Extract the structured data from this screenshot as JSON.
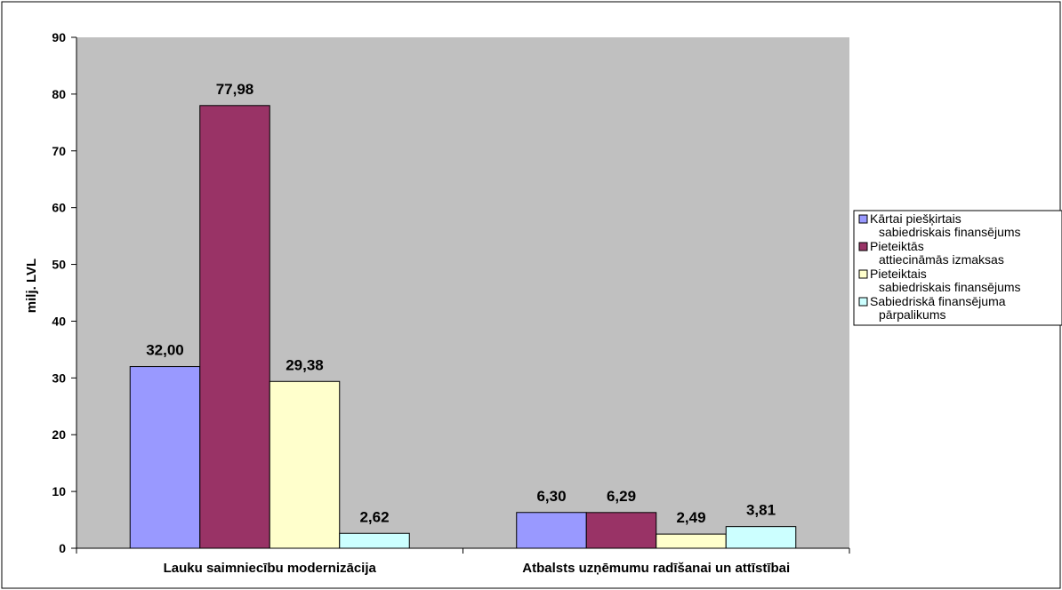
{
  "chart_data": {
    "type": "bar",
    "title": "",
    "xlabel": "",
    "ylabel": "milj. LVL",
    "ylim": [
      0,
      90
    ],
    "y_ticks": [
      "0",
      "10",
      "20",
      "30",
      "40",
      "50",
      "60",
      "70",
      "80",
      "90"
    ],
    "grid": false,
    "legend_position": "right",
    "categories": [
      "Lauku saimniecību modernizācija",
      "Atbalsts uzņēmumu radīšanai un attīstībai"
    ],
    "series": [
      {
        "name": "Kārtai piešķirtais sabiedriskais finansējums",
        "legend_lines": [
          "Kārtai piešķirtais",
          "sabiedriskais finansējums"
        ],
        "color": "#9999ff",
        "values": [
          32.0,
          6.3
        ],
        "labels": [
          "32,00",
          "6,30"
        ]
      },
      {
        "name": "Pieteiktās attiecināmās izmaksas",
        "legend_lines": [
          "Pieteiktās",
          "attiecināmās izmaksas"
        ],
        "color": "#993366",
        "values": [
          77.98,
          6.29
        ],
        "labels": [
          "77,98",
          "6,29"
        ]
      },
      {
        "name": "Pieteiktais sabiedriskais finansējums",
        "legend_lines": [
          "Pieteiktais",
          "sabiedriskais finansējums"
        ],
        "color": "#ffffcc",
        "values": [
          29.38,
          2.49
        ],
        "labels": [
          "29,38",
          "2,49"
        ]
      },
      {
        "name": "Sabiedriskā finansējuma pārpalikums",
        "legend_lines": [
          "Sabiedriskā finansējuma",
          "pārpalikums"
        ],
        "color": "#ccffff",
        "values": [
          2.62,
          3.81
        ],
        "labels": [
          "2,62",
          "3,81"
        ]
      }
    ],
    "plot_background": "#c0c0c0"
  }
}
